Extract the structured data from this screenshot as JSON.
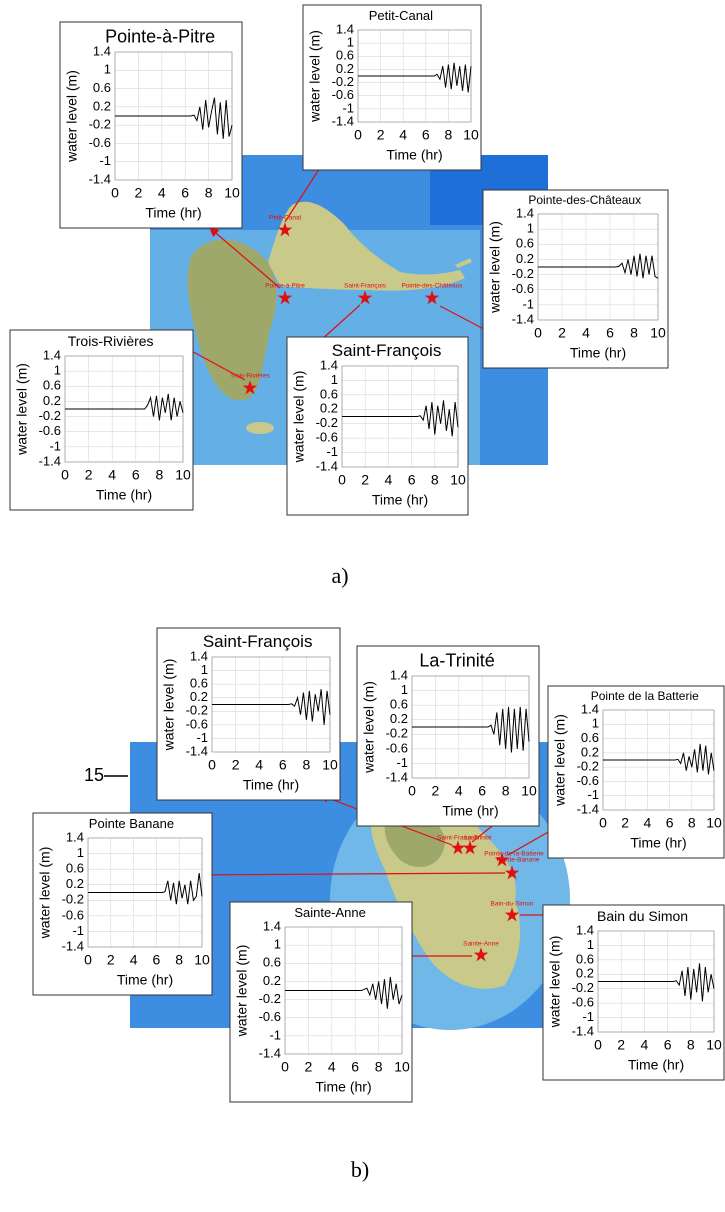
{
  "chart_data": [
    {
      "type": "line",
      "title": "Pointe-à-Pitre",
      "y_label": "water level (m)",
      "x_label": "Time (hr)",
      "x": [
        0,
        6.5,
        6.75,
        7,
        7.25,
        7.5,
        7.75,
        8,
        8.25,
        8.5,
        8.75,
        9,
        9.25,
        9.5,
        9.75,
        10
      ],
      "values": [
        0,
        0,
        0.02,
        -0.1,
        0.2,
        -0.3,
        0.35,
        -0.25,
        0.1,
        0.4,
        -0.4,
        0.3,
        -0.5,
        0.35,
        -0.45,
        -0.2
      ],
      "color": "#000000",
      "xlim": [
        0,
        10
      ],
      "xticks": [
        0,
        2,
        4,
        6,
        8,
        10
      ],
      "ylim": [
        -1.4,
        1.4
      ],
      "yticks": [
        -1.4,
        -1,
        -0.6,
        -0.2,
        0.2,
        0.6,
        1,
        1.4
      ],
      "grid": true
    },
    {
      "type": "line",
      "title": "Petit-Canal",
      "y_label": "water level (m)",
      "x_label": "Time (hr)",
      "x": [
        0,
        6.5,
        6.75,
        7,
        7.25,
        7.5,
        7.75,
        8,
        8.25,
        8.5,
        8.75,
        9,
        9.25,
        9.5,
        9.75,
        10
      ],
      "values": [
        0,
        0,
        0,
        0.05,
        -0.1,
        0.3,
        -0.35,
        0.35,
        -0.4,
        0.4,
        -0.3,
        0.3,
        -0.45,
        0.35,
        -0.5,
        0.3
      ],
      "color": "#000000",
      "xlim": [
        0,
        10
      ],
      "xticks": [
        0,
        2,
        4,
        6,
        8,
        10
      ],
      "ylim": [
        -1.4,
        1.4
      ],
      "yticks": [
        -1.4,
        -1,
        -0.6,
        -0.2,
        0.2,
        0.6,
        1,
        1.4
      ],
      "grid": true
    },
    {
      "type": "line",
      "title": "Pointe-des-Châteaux",
      "y_label": "water level (m)",
      "x_label": "Time (hr)",
      "x": [
        0,
        6.5,
        6.75,
        7,
        7.25,
        7.5,
        7.75,
        8,
        8.25,
        8.5,
        8.75,
        9,
        9.25,
        9.5,
        9.75,
        10
      ],
      "values": [
        0,
        0,
        0.02,
        0.1,
        -0.15,
        0.2,
        -0.2,
        0.3,
        -0.25,
        0.35,
        -0.3,
        0.3,
        -0.2,
        0.3,
        -0.25,
        -0.3
      ],
      "color": "#000000",
      "xlim": [
        0,
        10
      ],
      "xticks": [
        0,
        2,
        4,
        6,
        8,
        10
      ],
      "ylim": [
        -1.4,
        1.4
      ],
      "yticks": [
        -1.4,
        -1,
        -0.6,
        -0.2,
        0.2,
        0.6,
        1,
        1.4
      ],
      "grid": true
    },
    {
      "type": "line",
      "title": "Trois-Rivières",
      "y_label": "water level (m)",
      "x_label": "Time (hr)",
      "x": [
        0,
        6.5,
        6.75,
        7,
        7.25,
        7.5,
        7.75,
        8,
        8.25,
        8.5,
        8.75,
        9,
        9.25,
        9.5,
        9.75,
        10
      ],
      "values": [
        0,
        0,
        0,
        0.1,
        0.3,
        -0.2,
        0.35,
        -0.3,
        0.3,
        -0.1,
        0.4,
        -0.3,
        0.3,
        -0.2,
        0.2,
        -0.1
      ],
      "color": "#000000",
      "xlim": [
        0,
        10
      ],
      "xticks": [
        0,
        2,
        4,
        6,
        8,
        10
      ],
      "ylim": [
        -1.4,
        1.4
      ],
      "yticks": [
        -1.4,
        -1,
        -0.6,
        -0.2,
        0.2,
        0.6,
        1,
        1.4
      ],
      "grid": true
    },
    {
      "type": "line",
      "title": "Saint-François",
      "y_label": "water level (m)",
      "x_label": "Time (hr)",
      "x": [
        0,
        6.5,
        6.75,
        7,
        7.25,
        7.5,
        7.75,
        8,
        8.25,
        8.5,
        8.75,
        9,
        9.25,
        9.5,
        9.75,
        10
      ],
      "values": [
        0,
        0,
        0.02,
        -0.1,
        0.3,
        -0.35,
        0.4,
        -0.5,
        0.3,
        -0.2,
        0.45,
        -0.4,
        0.2,
        -0.55,
        0.4,
        -0.3
      ],
      "color": "#000000",
      "xlim": [
        0,
        10
      ],
      "xticks": [
        0,
        2,
        4,
        6,
        8,
        10
      ],
      "ylim": [
        -1.4,
        1.4
      ],
      "yticks": [
        -1.4,
        -1,
        -0.6,
        -0.2,
        0.2,
        0.6,
        1,
        1.4
      ],
      "grid": true
    },
    {
      "type": "line",
      "title": "Saint-François",
      "y_label": "water level (m)",
      "x_label": "Time (hr)",
      "x": [
        0,
        6.5,
        6.75,
        7,
        7.25,
        7.5,
        7.75,
        8,
        8.25,
        8.5,
        8.75,
        9,
        9.25,
        9.5,
        9.75,
        10
      ],
      "values": [
        0,
        0,
        0.02,
        -0.05,
        0.2,
        -0.3,
        0.35,
        -0.45,
        0.4,
        -0.5,
        0.3,
        -0.2,
        0.45,
        -0.6,
        0.4,
        -0.3
      ],
      "color": "#000000",
      "xlim": [
        0,
        10
      ],
      "xticks": [
        0,
        2,
        4,
        6,
        8,
        10
      ],
      "ylim": [
        -1.4,
        1.4
      ],
      "yticks": [
        -1.4,
        -1,
        -0.6,
        -0.2,
        0.2,
        0.6,
        1,
        1.4
      ],
      "grid": true
    },
    {
      "type": "line",
      "title": "La-Trinité",
      "y_label": "water level (m)",
      "x_label": "Time (hr)",
      "x": [
        0,
        6.5,
        6.75,
        7,
        7.25,
        7.5,
        7.75,
        8,
        8.25,
        8.5,
        8.75,
        9,
        9.25,
        9.5,
        9.75,
        10
      ],
      "values": [
        0,
        0,
        0.05,
        -0.2,
        0.4,
        -0.5,
        0.5,
        -0.6,
        0.55,
        -0.7,
        0.5,
        -0.6,
        0.55,
        -0.65,
        0.5,
        -0.4
      ],
      "color": "#000000",
      "xlim": [
        0,
        10
      ],
      "xticks": [
        0,
        2,
        4,
        6,
        8,
        10
      ],
      "ylim": [
        -1.4,
        1.4
      ],
      "yticks": [
        -1.4,
        -1,
        -0.6,
        -0.2,
        0.2,
        0.6,
        1,
        1.4
      ],
      "grid": true
    },
    {
      "type": "line",
      "title": "Pointe de la Batterie",
      "y_label": "water level (m)",
      "x_label": "Time (hr)",
      "x": [
        0,
        6.5,
        6.75,
        7,
        7.25,
        7.5,
        7.75,
        8,
        8.25,
        8.5,
        8.75,
        9,
        9.25,
        9.5,
        9.75,
        10
      ],
      "values": [
        0,
        0,
        0.02,
        -0.1,
        0.2,
        -0.3,
        0.1,
        -0.2,
        0.3,
        -0.35,
        0.45,
        -0.3,
        0.4,
        -0.4,
        0.2,
        -0.3
      ],
      "color": "#000000",
      "xlim": [
        0,
        10
      ],
      "xticks": [
        0,
        2,
        4,
        6,
        8,
        10
      ],
      "ylim": [
        -1.4,
        1.4
      ],
      "yticks": [
        -1.4,
        -1,
        -0.6,
        -0.2,
        0.2,
        0.6,
        1,
        1.4
      ],
      "grid": true
    },
    {
      "type": "line",
      "title": "Pointe Banane",
      "y_label": "water level (m)",
      "x_label": "Time (hr)",
      "x": [
        0,
        6.5,
        6.75,
        7,
        7.25,
        7.5,
        7.75,
        8,
        8.25,
        8.5,
        8.75,
        9,
        9.25,
        9.5,
        9.75,
        10
      ],
      "values": [
        0,
        0,
        0.02,
        0.3,
        -0.2,
        0.25,
        -0.3,
        0.3,
        -0.15,
        0.2,
        -0.3,
        0.3,
        -0.2,
        -0.1,
        0.5,
        -0.1
      ],
      "color": "#000000",
      "xlim": [
        0,
        10
      ],
      "xticks": [
        0,
        2,
        4,
        6,
        8,
        10
      ],
      "ylim": [
        -1.4,
        1.4
      ],
      "yticks": [
        -1.4,
        -1,
        -0.6,
        -0.2,
        0.2,
        0.6,
        1,
        1.4
      ],
      "grid": true
    },
    {
      "type": "line",
      "title": "Sainte-Anne",
      "y_label": "water level (m)",
      "x_label": "Time (hr)",
      "x": [
        0,
        6.5,
        6.75,
        7,
        7.25,
        7.5,
        7.75,
        8,
        8.25,
        8.5,
        8.75,
        9,
        9.25,
        9.5,
        9.75,
        10
      ],
      "values": [
        0,
        0,
        0.02,
        0.05,
        -0.1,
        0.15,
        -0.2,
        0.2,
        -0.3,
        0.25,
        -0.4,
        0.3,
        -0.2,
        0.15,
        -0.3,
        -0.1
      ],
      "color": "#000000",
      "xlim": [
        0,
        10
      ],
      "xticks": [
        0,
        2,
        4,
        6,
        8,
        10
      ],
      "ylim": [
        -1.4,
        1.4
      ],
      "yticks": [
        -1.4,
        -1,
        -0.6,
        -0.2,
        0.2,
        0.6,
        1,
        1.4
      ],
      "grid": true
    },
    {
      "type": "line",
      "title": "Bain du Simon",
      "y_label": "water level (m)",
      "x_label": "Time (hr)",
      "x": [
        0,
        6.5,
        6.75,
        7,
        7.25,
        7.5,
        7.75,
        8,
        8.25,
        8.5,
        8.75,
        9,
        9.25,
        9.5,
        9.75,
        10
      ],
      "values": [
        0,
        0,
        0.02,
        -0.1,
        0.3,
        -0.4,
        0.4,
        -0.5,
        0.35,
        -0.3,
        0.5,
        -0.55,
        0.4,
        -0.3,
        0.2,
        -0.2
      ],
      "color": "#000000",
      "xlim": [
        0,
        10
      ],
      "xticks": [
        0,
        2,
        4,
        6,
        8,
        10
      ],
      "ylim": [
        -1.4,
        1.4
      ],
      "yticks": [
        -1.4,
        -1,
        -0.6,
        -0.2,
        0.2,
        0.6,
        1,
        1.4
      ],
      "grid": true
    }
  ],
  "panels": [
    {
      "label": "a)",
      "map_labels": [
        "Petit-Canal",
        "Pointe-à-Pitre",
        "Saint-François",
        "Pointe-des-Châteaux",
        "Trois-Rivières"
      ]
    },
    {
      "label": "b)",
      "axis_label": "15",
      "map_labels": [
        "Saint-François",
        "La-Trinité",
        "Pointe-de-la-Batterie",
        "Pointe-Banane",
        "Bain-du-Simon",
        "Sainte-Anne"
      ]
    }
  ]
}
